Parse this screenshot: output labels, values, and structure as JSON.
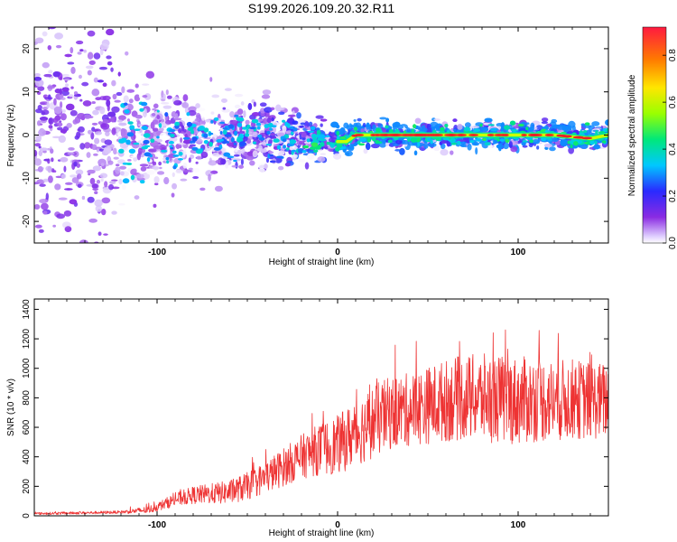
{
  "figure_title": "S199.2026.109.20.32.R11",
  "colors": {
    "snr_line": "#ee3333",
    "ridge_core": "#e8202a",
    "frame": "#000000"
  },
  "chart_data": [
    {
      "type": "heatmap",
      "name": "spectrogram",
      "xlabel": "Height of straight line (km)",
      "ylabel": "Frequency (Hz)",
      "xlim": [
        -168,
        150
      ],
      "ylim": [
        -25,
        25
      ],
      "xticks": [
        -100,
        0,
        100
      ],
      "xtick_labels": [
        "-100",
        "0",
        "100"
      ],
      "yticks": [
        -20,
        -10,
        0,
        10,
        20
      ],
      "ytick_labels": [
        "-20",
        "-10",
        "0",
        "10",
        "20"
      ],
      "description_series": [
        {
          "name": "ridge_frequency",
          "x": [
            -168,
            -120,
            -80,
            -40,
            -20,
            0,
            5,
            10,
            20,
            40,
            60,
            80,
            100,
            120,
            140,
            150
          ],
          "y": [
            0,
            0,
            -1,
            0,
            -1,
            -1.5,
            -1.5,
            0,
            0,
            0,
            0,
            0,
            0,
            0,
            -0.8,
            0
          ]
        },
        {
          "name": "frequency_spread_hz",
          "x": [
            -168,
            -130,
            -120,
            -100,
            -80,
            -60,
            -40,
            -20,
            0,
            20,
            60,
            100,
            150
          ],
          "y": [
            25,
            25,
            14,
            10,
            8,
            7,
            7,
            5,
            3,
            2.5,
            2.5,
            2.5,
            2.5
          ]
        }
      ],
      "colorbar": {
        "label": "Normalized spectral amplitude",
        "range": [
          0,
          0.92
        ],
        "ticks": [
          0,
          0.2,
          0.4,
          0.6,
          0.8
        ],
        "tick_labels": [
          "0.0",
          "0.2",
          "0.4",
          "0.6",
          "0.8"
        ]
      }
    },
    {
      "type": "line",
      "name": "snr",
      "xlabel": "Height of straight line (km)",
      "ylabel": "SNR (10 * v/v)",
      "xlim": [
        -168,
        150
      ],
      "ylim": [
        0,
        1470
      ],
      "xticks": [
        -100,
        0,
        100
      ],
      "xtick_labels": [
        "-100",
        "0",
        "100"
      ],
      "yticks": [
        0,
        200,
        400,
        600,
        800,
        1000,
        1200,
        1400
      ],
      "ytick_labels": [
        "0",
        "200",
        "400",
        "600",
        "800",
        "1000",
        "1200",
        "1400"
      ],
      "series": [
        {
          "name": "SNR envelope (mean)",
          "x": [
            -168,
            -140,
            -120,
            -105,
            -100,
            -90,
            -80,
            -70,
            -60,
            -50,
            -40,
            -30,
            -20,
            -10,
            0,
            10,
            20,
            30,
            40,
            50,
            60,
            70,
            80,
            90,
            100,
            110,
            120,
            130,
            140,
            150
          ],
          "values": [
            15,
            20,
            25,
            40,
            60,
            110,
            140,
            150,
            160,
            200,
            260,
            330,
            400,
            450,
            480,
            560,
            640,
            700,
            720,
            750,
            780,
            800,
            800,
            790,
            780,
            790,
            780,
            790,
            780,
            780
          ]
        },
        {
          "name": "SNR envelope (spread)",
          "x": [
            -168,
            -120,
            -100,
            -80,
            -60,
            -40,
            -20,
            0,
            20,
            40,
            60,
            80,
            100,
            120,
            150
          ],
          "values": [
            8,
            10,
            30,
            60,
            80,
            110,
            150,
            200,
            250,
            250,
            280,
            300,
            300,
            280,
            260
          ]
        }
      ]
    }
  ]
}
